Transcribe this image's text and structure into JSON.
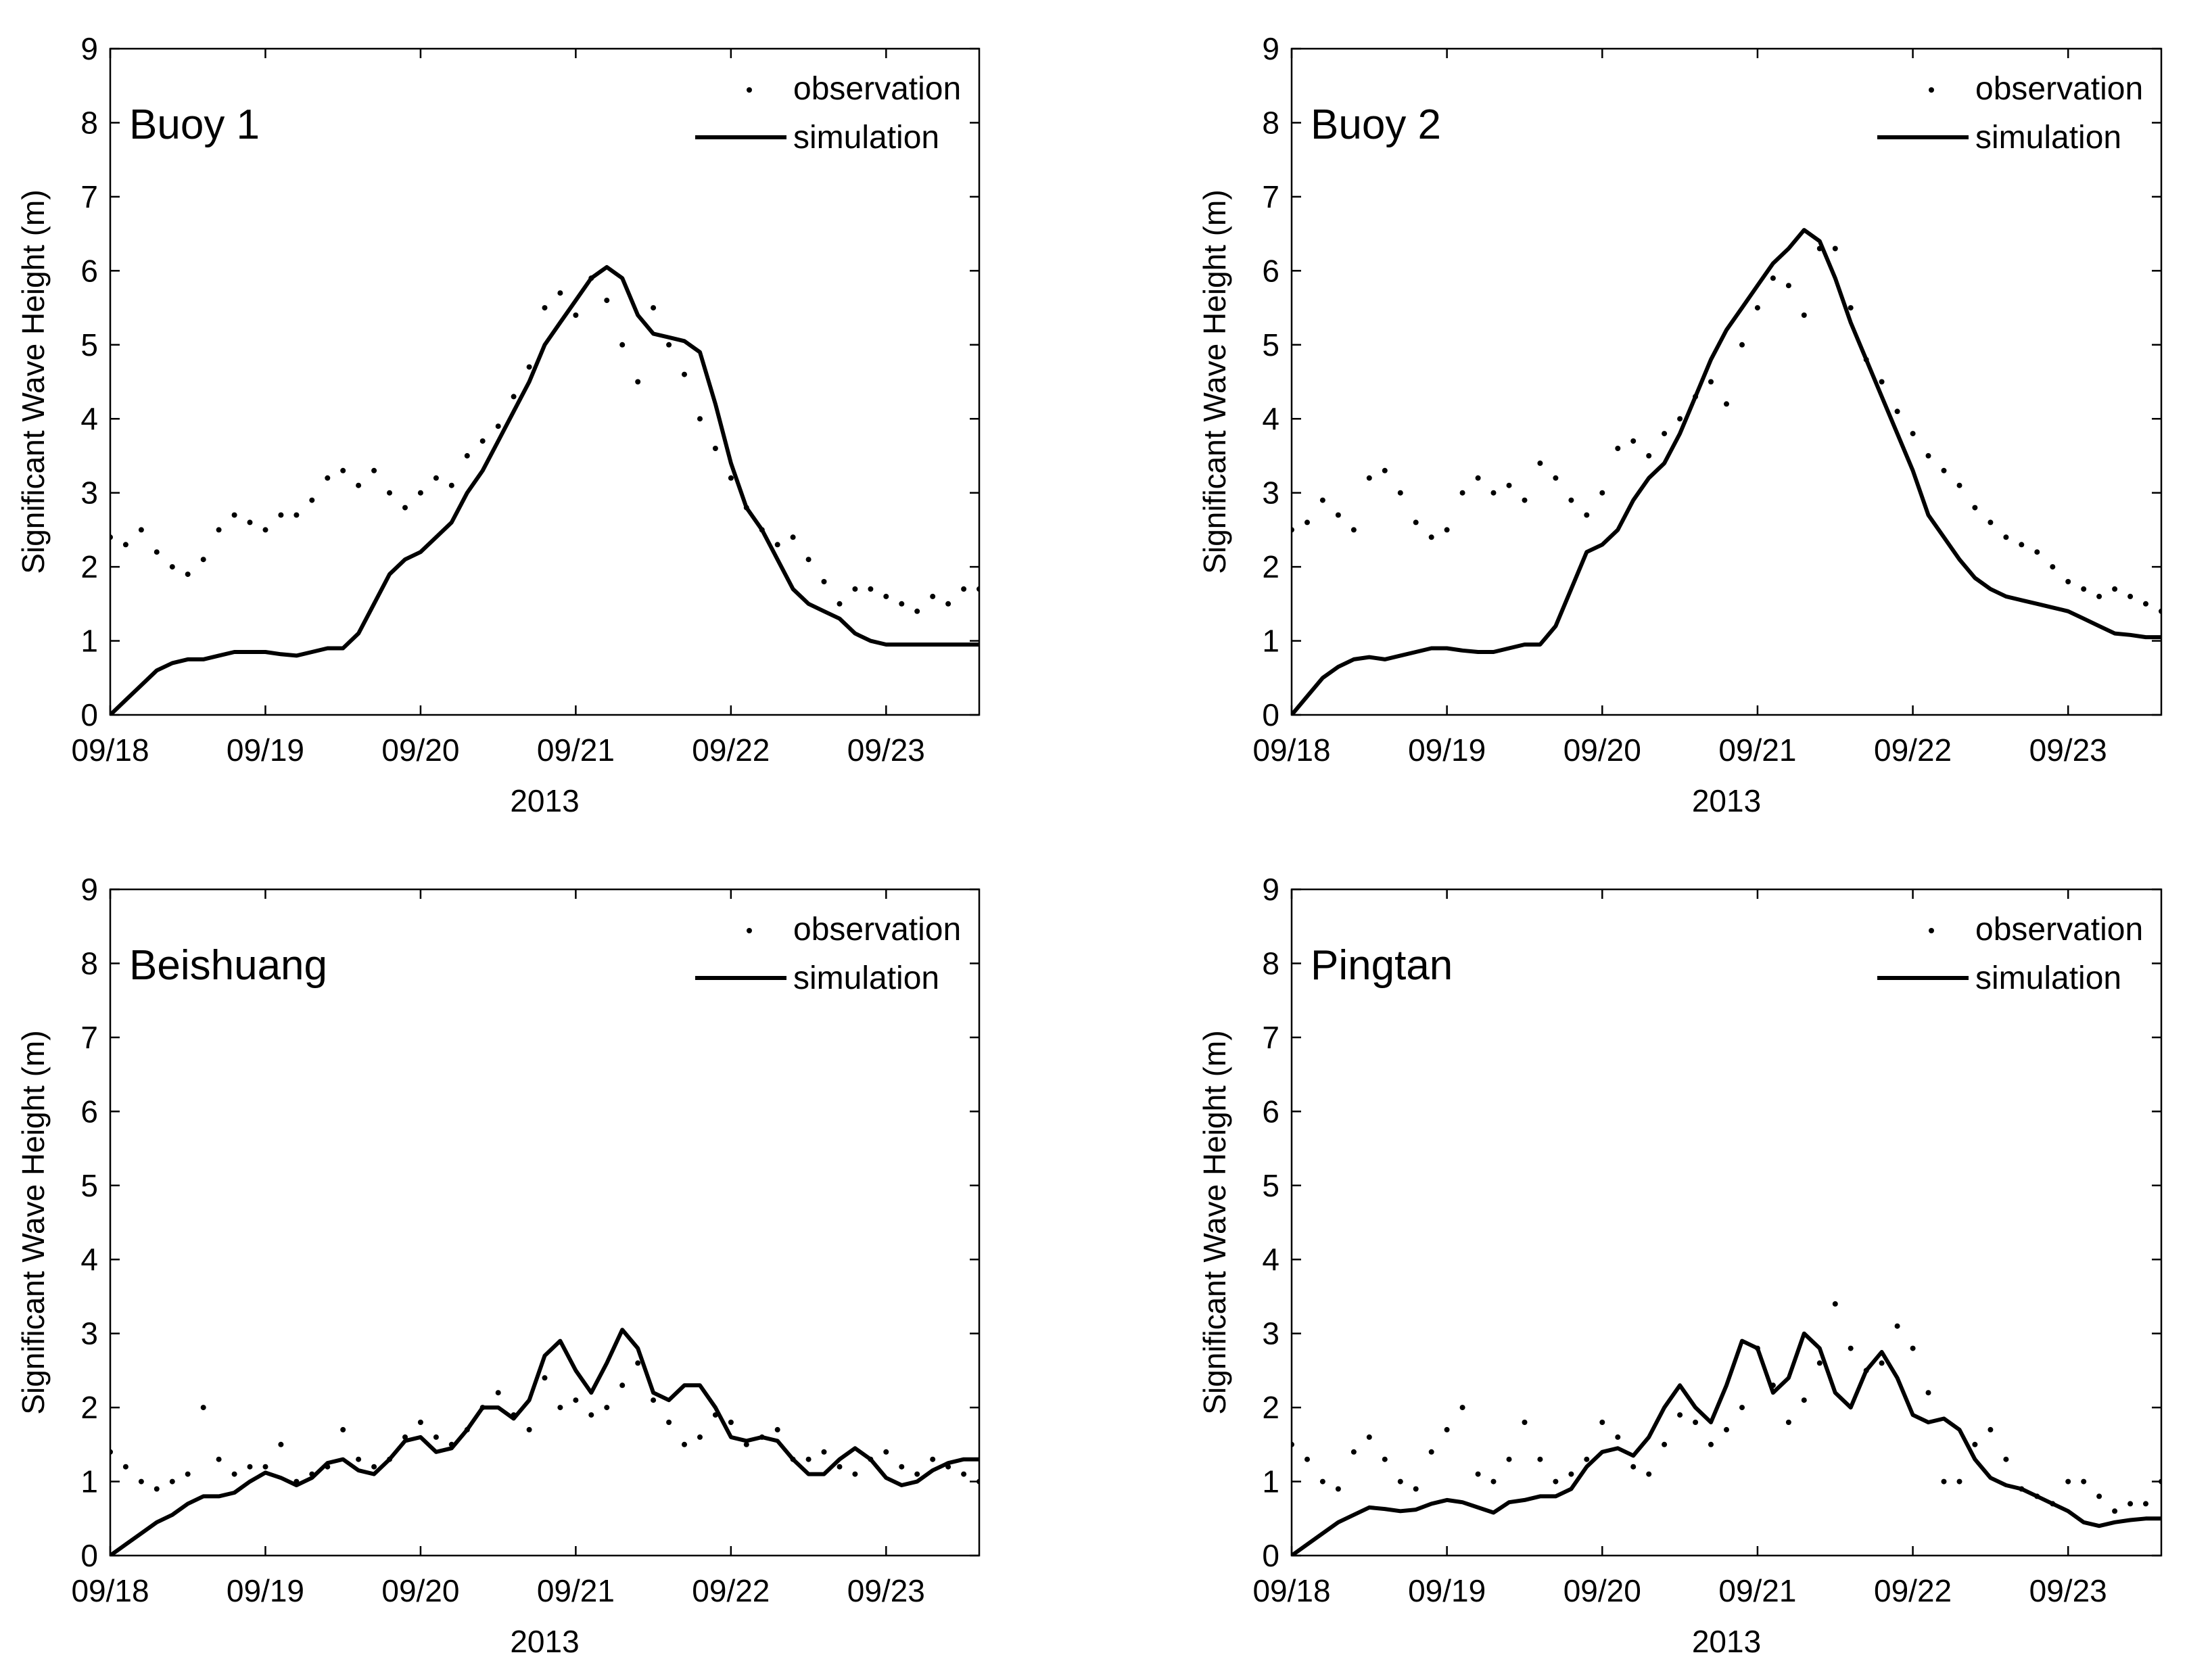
{
  "figure": {
    "ylabel": "Significant Wave Height (m)"
  },
  "chart_data": [
    {
      "type": "line",
      "title": "Buoy 1",
      "xlabel": "2013",
      "ylabel": "Significant Wave Height (m)",
      "xlim": [
        0,
        5.6
      ],
      "ylim": [
        0,
        9
      ],
      "x_ticks": [
        0,
        1,
        2,
        3,
        4,
        5
      ],
      "x_tick_labels": [
        "09/18",
        "09/19",
        "09/20",
        "09/21",
        "09/22",
        "09/23"
      ],
      "y_ticks": [
        0,
        1,
        2,
        3,
        4,
        5,
        6,
        7,
        8,
        9
      ],
      "x_unit": "days since 09/18 00:00",
      "legend": {
        "position": "top-right",
        "entries": [
          "observation",
          "simulation"
        ]
      },
      "series": [
        {
          "name": "observation",
          "style": "dots",
          "x": [
            0.0,
            0.1,
            0.2,
            0.3,
            0.4,
            0.5,
            0.6,
            0.7,
            0.8,
            0.9,
            1.0,
            1.1,
            1.2,
            1.3,
            1.4,
            1.5,
            1.6,
            1.7,
            1.8,
            1.9,
            2.0,
            2.1,
            2.2,
            2.3,
            2.4,
            2.5,
            2.6,
            2.7,
            2.8,
            2.9,
            3.0,
            3.1,
            3.2,
            3.3,
            3.4,
            3.5,
            3.6,
            3.7,
            3.8,
            3.9,
            4.0,
            4.1,
            4.2,
            4.3,
            4.4,
            4.5,
            4.6,
            4.7,
            4.8,
            4.9,
            5.0,
            5.1,
            5.2,
            5.3,
            5.4,
            5.5,
            5.6
          ],
          "y": [
            2.4,
            2.3,
            2.5,
            2.2,
            2.0,
            1.9,
            2.1,
            2.5,
            2.7,
            2.6,
            2.5,
            2.7,
            2.7,
            2.9,
            3.2,
            3.3,
            3.1,
            3.3,
            3.0,
            2.8,
            3.0,
            3.2,
            3.1,
            3.5,
            3.7,
            3.9,
            4.3,
            4.7,
            5.5,
            5.7,
            5.4,
            5.9,
            5.6,
            5.0,
            4.5,
            5.5,
            5.0,
            4.6,
            4.0,
            3.6,
            3.2,
            2.8,
            2.5,
            2.3,
            2.4,
            2.1,
            1.8,
            1.5,
            1.7,
            1.7,
            1.6,
            1.5,
            1.4,
            1.6,
            1.5,
            1.7,
            1.7
          ]
        },
        {
          "name": "simulation",
          "style": "line",
          "x": [
            0.0,
            0.1,
            0.2,
            0.3,
            0.4,
            0.5,
            0.6,
            0.7,
            0.8,
            0.9,
            1.0,
            1.1,
            1.2,
            1.3,
            1.4,
            1.5,
            1.6,
            1.7,
            1.8,
            1.9,
            2.0,
            2.1,
            2.2,
            2.3,
            2.4,
            2.5,
            2.6,
            2.7,
            2.8,
            2.9,
            3.0,
            3.1,
            3.2,
            3.3,
            3.4,
            3.5,
            3.6,
            3.7,
            3.8,
            3.9,
            4.0,
            4.1,
            4.2,
            4.3,
            4.4,
            4.5,
            4.6,
            4.7,
            4.8,
            4.9,
            5.0,
            5.1,
            5.2,
            5.3,
            5.4,
            5.5,
            5.6
          ],
          "y": [
            0.0,
            0.2,
            0.4,
            0.6,
            0.7,
            0.75,
            0.75,
            0.8,
            0.85,
            0.85,
            0.85,
            0.82,
            0.8,
            0.85,
            0.9,
            0.9,
            1.1,
            1.5,
            1.9,
            2.1,
            2.2,
            2.4,
            2.6,
            3.0,
            3.3,
            3.7,
            4.1,
            4.5,
            5.0,
            5.3,
            5.6,
            5.9,
            6.05,
            5.9,
            5.4,
            5.15,
            5.1,
            5.05,
            4.9,
            4.2,
            3.4,
            2.8,
            2.5,
            2.1,
            1.7,
            1.5,
            1.4,
            1.3,
            1.1,
            1.0,
            0.95,
            0.95,
            0.95,
            0.95,
            0.95,
            0.95,
            0.95
          ]
        }
      ]
    },
    {
      "type": "line",
      "title": "Buoy 2",
      "xlabel": "2013",
      "ylabel": "Significant Wave Height (m)",
      "xlim": [
        0,
        5.6
      ],
      "ylim": [
        0,
        9
      ],
      "x_ticks": [
        0,
        1,
        2,
        3,
        4,
        5
      ],
      "x_tick_labels": [
        "09/18",
        "09/19",
        "09/20",
        "09/21",
        "09/22",
        "09/23"
      ],
      "y_ticks": [
        0,
        1,
        2,
        3,
        4,
        5,
        6,
        7,
        8,
        9
      ],
      "x_unit": "days since 09/18 00:00",
      "legend": {
        "position": "top-right",
        "entries": [
          "observation",
          "simulation"
        ]
      },
      "series": [
        {
          "name": "observation",
          "style": "dots",
          "x": [
            0.0,
            0.1,
            0.2,
            0.3,
            0.4,
            0.5,
            0.6,
            0.7,
            0.8,
            0.9,
            1.0,
            1.1,
            1.2,
            1.3,
            1.4,
            1.5,
            1.6,
            1.7,
            1.8,
            1.9,
            2.0,
            2.1,
            2.2,
            2.3,
            2.4,
            2.5,
            2.6,
            2.7,
            2.8,
            2.9,
            3.0,
            3.1,
            3.2,
            3.3,
            3.4,
            3.5,
            3.6,
            3.7,
            3.8,
            3.9,
            4.0,
            4.1,
            4.2,
            4.3,
            4.4,
            4.5,
            4.6,
            4.7,
            4.8,
            4.9,
            5.0,
            5.1,
            5.2,
            5.3,
            5.4,
            5.5,
            5.6
          ],
          "y": [
            2.5,
            2.6,
            2.9,
            2.7,
            2.5,
            3.2,
            3.3,
            3.0,
            2.6,
            2.4,
            2.5,
            3.0,
            3.2,
            3.0,
            3.1,
            2.9,
            3.4,
            3.2,
            2.9,
            2.7,
            3.0,
            3.6,
            3.7,
            3.5,
            3.8,
            4.0,
            4.3,
            4.5,
            4.2,
            5.0,
            5.5,
            5.9,
            5.8,
            5.4,
            6.3,
            6.3,
            5.5,
            4.8,
            4.5,
            4.1,
            3.8,
            3.5,
            3.3,
            3.1,
            2.8,
            2.6,
            2.4,
            2.3,
            2.2,
            2.0,
            1.8,
            1.7,
            1.6,
            1.7,
            1.6,
            1.5,
            1.4
          ]
        },
        {
          "name": "simulation",
          "style": "line",
          "x": [
            0.0,
            0.1,
            0.2,
            0.3,
            0.4,
            0.5,
            0.6,
            0.7,
            0.8,
            0.9,
            1.0,
            1.1,
            1.2,
            1.3,
            1.4,
            1.5,
            1.6,
            1.7,
            1.8,
            1.9,
            2.0,
            2.1,
            2.2,
            2.3,
            2.4,
            2.5,
            2.6,
            2.7,
            2.8,
            2.9,
            3.0,
            3.1,
            3.2,
            3.3,
            3.4,
            3.5,
            3.6,
            3.7,
            3.8,
            3.9,
            4.0,
            4.1,
            4.2,
            4.3,
            4.4,
            4.5,
            4.6,
            4.7,
            4.8,
            4.9,
            5.0,
            5.1,
            5.2,
            5.3,
            5.4,
            5.5,
            5.6
          ],
          "y": [
            0.0,
            0.25,
            0.5,
            0.65,
            0.75,
            0.78,
            0.75,
            0.8,
            0.85,
            0.9,
            0.9,
            0.87,
            0.85,
            0.85,
            0.9,
            0.95,
            0.95,
            1.2,
            1.7,
            2.2,
            2.3,
            2.5,
            2.9,
            3.2,
            3.4,
            3.8,
            4.3,
            4.8,
            5.2,
            5.5,
            5.8,
            6.1,
            6.3,
            6.55,
            6.4,
            5.9,
            5.3,
            4.8,
            4.3,
            3.8,
            3.3,
            2.7,
            2.4,
            2.1,
            1.85,
            1.7,
            1.6,
            1.55,
            1.5,
            1.45,
            1.4,
            1.3,
            1.2,
            1.1,
            1.08,
            1.05,
            1.05
          ]
        }
      ]
    },
    {
      "type": "line",
      "title": "Beishuang",
      "xlabel": "2013",
      "ylabel": "Significant Wave Height (m)",
      "xlim": [
        0,
        5.6
      ],
      "ylim": [
        0,
        9
      ],
      "x_ticks": [
        0,
        1,
        2,
        3,
        4,
        5
      ],
      "x_tick_labels": [
        "09/18",
        "09/19",
        "09/20",
        "09/21",
        "09/22",
        "09/23"
      ],
      "y_ticks": [
        0,
        1,
        2,
        3,
        4,
        5,
        6,
        7,
        8,
        9
      ],
      "x_unit": "days since 09/18 00:00",
      "legend": {
        "position": "top-right",
        "entries": [
          "observation",
          "simulation"
        ]
      },
      "series": [
        {
          "name": "observation",
          "style": "dots",
          "x": [
            0.0,
            0.1,
            0.2,
            0.3,
            0.4,
            0.5,
            0.6,
            0.7,
            0.8,
            0.9,
            1.0,
            1.1,
            1.2,
            1.3,
            1.4,
            1.5,
            1.6,
            1.7,
            1.8,
            1.9,
            2.0,
            2.1,
            2.2,
            2.3,
            2.4,
            2.5,
            2.6,
            2.7,
            2.8,
            2.9,
            3.0,
            3.1,
            3.2,
            3.3,
            3.4,
            3.5,
            3.6,
            3.7,
            3.8,
            3.9,
            4.0,
            4.1,
            4.2,
            4.3,
            4.4,
            4.5,
            4.6,
            4.7,
            4.8,
            4.9,
            5.0,
            5.1,
            5.2,
            5.3,
            5.4,
            5.5,
            5.6
          ],
          "y": [
            1.4,
            1.2,
            1.0,
            0.9,
            1.0,
            1.1,
            2.0,
            1.3,
            1.1,
            1.2,
            1.2,
            1.5,
            1.0,
            1.1,
            1.2,
            1.7,
            1.3,
            1.2,
            1.3,
            1.6,
            1.8,
            1.6,
            1.5,
            1.7,
            2.0,
            2.2,
            1.9,
            1.7,
            2.4,
            2.0,
            2.1,
            1.9,
            2.0,
            2.3,
            2.6,
            2.1,
            1.8,
            1.5,
            1.6,
            1.9,
            1.8,
            1.5,
            1.6,
            1.7,
            1.3,
            1.3,
            1.4,
            1.2,
            1.1,
            1.3,
            1.4,
            1.2,
            1.1,
            1.3,
            1.2,
            1.1,
            1.0
          ]
        },
        {
          "name": "simulation",
          "style": "line",
          "x": [
            0.0,
            0.1,
            0.2,
            0.3,
            0.4,
            0.5,
            0.6,
            0.7,
            0.8,
            0.9,
            1.0,
            1.1,
            1.2,
            1.3,
            1.4,
            1.5,
            1.6,
            1.7,
            1.8,
            1.9,
            2.0,
            2.1,
            2.2,
            2.3,
            2.4,
            2.5,
            2.6,
            2.7,
            2.8,
            2.9,
            3.0,
            3.1,
            3.2,
            3.3,
            3.4,
            3.5,
            3.6,
            3.7,
            3.8,
            3.9,
            4.0,
            4.1,
            4.2,
            4.3,
            4.4,
            4.5,
            4.6,
            4.7,
            4.8,
            4.9,
            5.0,
            5.1,
            5.2,
            5.3,
            5.4,
            5.5,
            5.6
          ],
          "y": [
            0.0,
            0.15,
            0.3,
            0.45,
            0.55,
            0.7,
            0.8,
            0.8,
            0.85,
            1.0,
            1.12,
            1.05,
            0.95,
            1.05,
            1.25,
            1.3,
            1.15,
            1.1,
            1.3,
            1.55,
            1.6,
            1.4,
            1.45,
            1.7,
            2.0,
            2.0,
            1.85,
            2.1,
            2.7,
            2.9,
            2.5,
            2.2,
            2.6,
            3.05,
            2.8,
            2.2,
            2.1,
            2.3,
            2.3,
            2.0,
            1.6,
            1.55,
            1.6,
            1.55,
            1.3,
            1.1,
            1.1,
            1.3,
            1.45,
            1.3,
            1.05,
            0.95,
            1.0,
            1.15,
            1.25,
            1.3,
            1.3
          ]
        }
      ]
    },
    {
      "type": "line",
      "title": "Pingtan",
      "xlabel": "2013",
      "ylabel": "Significant Wave Height (m)",
      "xlim": [
        0,
        5.6
      ],
      "ylim": [
        0,
        9
      ],
      "x_ticks": [
        0,
        1,
        2,
        3,
        4,
        5
      ],
      "x_tick_labels": [
        "09/18",
        "09/19",
        "09/20",
        "09/21",
        "09/22",
        "09/23"
      ],
      "y_ticks": [
        0,
        1,
        2,
        3,
        4,
        5,
        6,
        7,
        8,
        9
      ],
      "x_unit": "days since 09/18 00:00",
      "legend": {
        "position": "top-right",
        "entries": [
          "observation",
          "simulation"
        ]
      },
      "series": [
        {
          "name": "observation",
          "style": "dots",
          "x": [
            0.0,
            0.1,
            0.2,
            0.3,
            0.4,
            0.5,
            0.6,
            0.7,
            0.8,
            0.9,
            1.0,
            1.1,
            1.2,
            1.3,
            1.4,
            1.5,
            1.6,
            1.7,
            1.8,
            1.9,
            2.0,
            2.1,
            2.2,
            2.3,
            2.4,
            2.5,
            2.6,
            2.7,
            2.8,
            2.9,
            3.0,
            3.1,
            3.2,
            3.3,
            3.4,
            3.5,
            3.6,
            3.7,
            3.8,
            3.9,
            4.0,
            4.1,
            4.2,
            4.3,
            4.4,
            4.5,
            4.6,
            4.7,
            4.8,
            4.9,
            5.0,
            5.1,
            5.2,
            5.3,
            5.4,
            5.5,
            5.6
          ],
          "y": [
            1.5,
            1.3,
            1.0,
            0.9,
            1.4,
            1.6,
            1.3,
            1.0,
            0.9,
            1.4,
            1.7,
            2.0,
            1.1,
            1.0,
            1.3,
            1.8,
            1.3,
            1.0,
            1.1,
            1.3,
            1.8,
            1.6,
            1.2,
            1.1,
            1.5,
            1.9,
            1.8,
            1.5,
            1.7,
            2.0,
            2.8,
            2.3,
            1.8,
            2.1,
            2.6,
            3.4,
            2.8,
            2.5,
            2.6,
            3.1,
            2.8,
            2.2,
            1.0,
            1.0,
            1.5,
            1.7,
            1.3,
            0.9,
            0.8,
            0.7,
            1.0,
            1.0,
            0.8,
            0.6,
            0.7,
            0.7,
            1.0
          ]
        },
        {
          "name": "simulation",
          "style": "line",
          "x": [
            0.0,
            0.1,
            0.2,
            0.3,
            0.4,
            0.5,
            0.6,
            0.7,
            0.8,
            0.9,
            1.0,
            1.1,
            1.2,
            1.3,
            1.4,
            1.5,
            1.6,
            1.7,
            1.8,
            1.9,
            2.0,
            2.1,
            2.2,
            2.3,
            2.4,
            2.5,
            2.6,
            2.7,
            2.8,
            2.9,
            3.0,
            3.1,
            3.2,
            3.3,
            3.4,
            3.5,
            3.6,
            3.7,
            3.8,
            3.9,
            4.0,
            4.1,
            4.2,
            4.3,
            4.4,
            4.5,
            4.6,
            4.7,
            4.8,
            4.9,
            5.0,
            5.1,
            5.2,
            5.3,
            5.4,
            5.5,
            5.6
          ],
          "y": [
            0.0,
            0.15,
            0.3,
            0.45,
            0.55,
            0.65,
            0.63,
            0.6,
            0.62,
            0.7,
            0.75,
            0.72,
            0.65,
            0.58,
            0.72,
            0.75,
            0.8,
            0.8,
            0.9,
            1.2,
            1.4,
            1.45,
            1.35,
            1.6,
            2.0,
            2.3,
            2.0,
            1.8,
            2.3,
            2.9,
            2.8,
            2.2,
            2.4,
            3.0,
            2.8,
            2.2,
            2.0,
            2.5,
            2.75,
            2.4,
            1.9,
            1.8,
            1.85,
            1.7,
            1.3,
            1.05,
            0.95,
            0.9,
            0.8,
            0.7,
            0.6,
            0.45,
            0.4,
            0.45,
            0.48,
            0.5,
            0.5
          ]
        }
      ]
    }
  ]
}
